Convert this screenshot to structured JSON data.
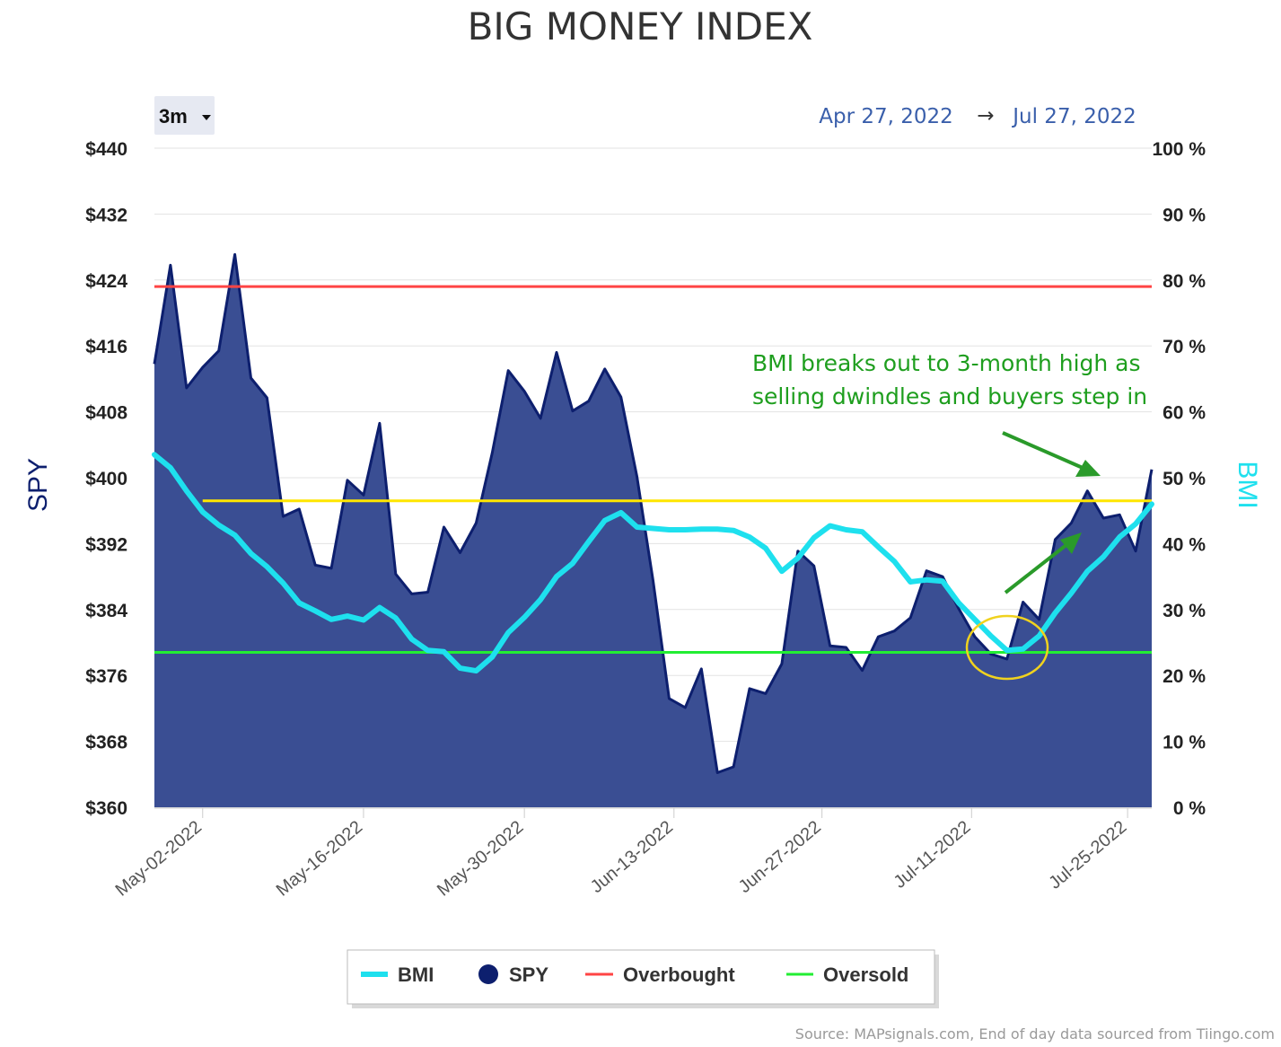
{
  "chart_data": {
    "type": "area",
    "title": "BIG MONEY INDEX",
    "range_button": "3m",
    "date_range": {
      "from": "Apr 27, 2022",
      "arrow": "→",
      "to": "Jul 27, 2022"
    },
    "left_axis": {
      "title": "SPY",
      "min": 360,
      "max": 440,
      "ticks": [
        "$440",
        "$432",
        "$424",
        "$416",
        "$408",
        "$400",
        "$392",
        "$384",
        "$376",
        "$368",
        "$360"
      ]
    },
    "right_axis": {
      "title": "BMI",
      "min": 0,
      "max": 100,
      "ticks": [
        "100 %",
        "90 %",
        "80 %",
        "70 %",
        "60 %",
        "50 %",
        "40 %",
        "30 %",
        "20 %",
        "10 %",
        "0 %"
      ]
    },
    "x_ticks": [
      {
        "label": "May-02-2022",
        "index": 3
      },
      {
        "label": "May-16-2022",
        "index": 13
      },
      {
        "label": "May-30-2022",
        "index": 23
      },
      {
        "label": "Jun-13-2022",
        "index": 32.3
      },
      {
        "label": "Jun-27-2022",
        "index": 41.5
      },
      {
        "label": "Jul-11-2022",
        "index": 50.8
      },
      {
        "label": "Jul-25-2022",
        "index": 60.5
      }
    ],
    "series": [
      {
        "name": "SPY",
        "color": "#0d1f6e",
        "fill": "#3a4e93",
        "values": [
          413.8,
          425.8,
          410.9,
          413.4,
          415.4,
          427.1,
          412.1,
          409.7,
          395.3,
          396.2,
          389.4,
          389.0,
          399.7,
          397.9,
          406.6,
          388.3,
          385.9,
          386.1,
          394.0,
          390.9,
          394.5,
          403.0,
          413.0,
          410.5,
          407.2,
          415.2,
          408.1,
          409.3,
          413.2,
          409.8,
          400.1,
          387.5,
          373.2,
          372.1,
          376.8,
          364.2,
          364.9,
          374.4,
          373.8,
          377.4,
          391.1,
          389.3,
          379.6,
          379.4,
          376.6,
          380.7,
          381.4,
          383.0,
          388.7,
          388.0,
          384.1,
          380.7,
          378.6,
          378.0,
          384.9,
          382.8,
          392.5,
          394.5,
          398.4,
          395.1,
          395.5,
          391.1,
          401.0
        ]
      },
      {
        "name": "BMI",
        "color": "#1ee0ee",
        "values": [
          53.5,
          51.5,
          48.0,
          44.8,
          42.8,
          41.3,
          38.5,
          36.5,
          34.0,
          31.0,
          29.8,
          28.5,
          29.0,
          28.4,
          30.3,
          28.7,
          25.5,
          23.8,
          23.6,
          21.1,
          20.7,
          22.8,
          26.5,
          28.8,
          31.5,
          35.0,
          37.0,
          40.3,
          43.5,
          44.7,
          42.5,
          42.3,
          42.1,
          42.1,
          42.2,
          42.2,
          42.0,
          41.0,
          39.3,
          35.8,
          37.8,
          40.9,
          42.7,
          42.1,
          41.8,
          39.5,
          37.3,
          34.2,
          34.5,
          34.3,
          31.0,
          28.5,
          26.0,
          23.8,
          24.0,
          26.0,
          29.5,
          32.5,
          35.8,
          38.0,
          41.0,
          43.0,
          46.0
        ]
      },
      {
        "name": "Overbought",
        "color": "#ff4444",
        "value": 79
      },
      {
        "name": "Oversold",
        "color": "#22ee33",
        "value": 23.5
      }
    ],
    "reference_lines": [
      {
        "color": "#ffe600",
        "value": 46.5
      }
    ],
    "annotation": {
      "lines": [
        "BMI breaks out to 3-month high as",
        "selling dwindles and buyers step in"
      ],
      "color": "#1e9e1e"
    },
    "legend": {
      "placement": "bottom",
      "items": [
        {
          "label": "BMI",
          "color": "#1ee0ee",
          "symbol": "line"
        },
        {
          "label": "SPY",
          "color": "#0d1f6e",
          "symbol": "circle"
        },
        {
          "label": "Overbought",
          "color": "#ff4444",
          "symbol": "line"
        },
        {
          "label": "Oversold",
          "color": "#22ee33",
          "symbol": "line"
        }
      ]
    },
    "source": "Source: MAPsignals.com, End of day data sourced from Tiingo.com",
    "grid": true
  }
}
